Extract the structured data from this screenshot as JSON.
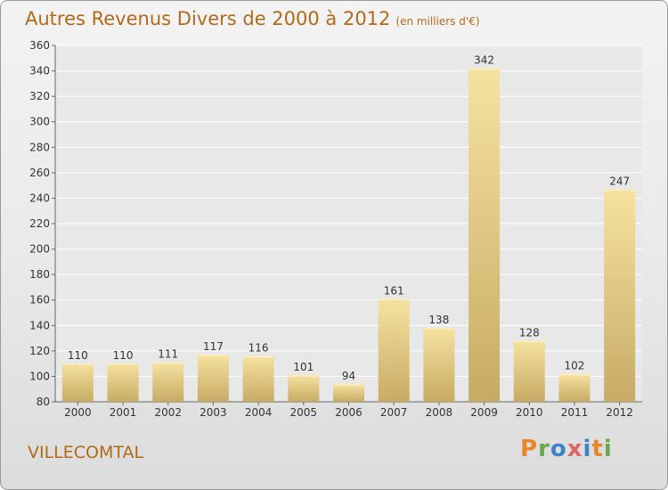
{
  "header": {
    "title": "Autres Revenus Divers de 2000 à 2012",
    "subtitle": "(en milliers d'€)"
  },
  "footer": {
    "commune": "VILLECOMTAL",
    "logo_text": "Proxiti"
  },
  "colors": {
    "title": "#b06a1a",
    "bar_light": "#f6e2a0",
    "bar_dark": "#c7ab64",
    "logo_letters": [
      "#e8862a",
      "#6aa84f",
      "#3d85c6",
      "#e06666",
      "#3d85c6",
      "#e8862a",
      "#6aa84f"
    ]
  },
  "chart_data": {
    "type": "bar",
    "categories": [
      "2000",
      "2001",
      "2002",
      "2003",
      "2004",
      "2005",
      "2006",
      "2007",
      "2008",
      "2009",
      "2010",
      "2011",
      "2012"
    ],
    "values": [
      110,
      110,
      111,
      117,
      116,
      101,
      94,
      161,
      138,
      342,
      128,
      102,
      247
    ],
    "ylim": [
      80,
      360
    ],
    "yticks": [
      80,
      100,
      120,
      140,
      160,
      180,
      200,
      220,
      240,
      260,
      280,
      300,
      320,
      340,
      360
    ],
    "grid": true
  }
}
